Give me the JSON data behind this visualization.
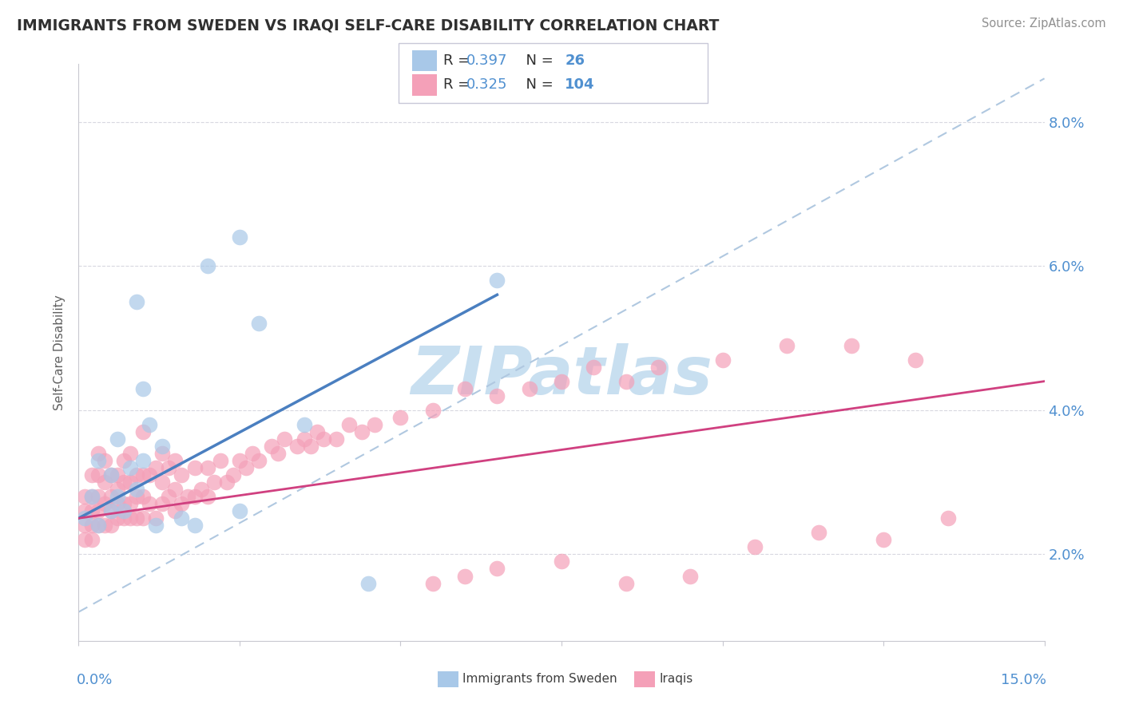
{
  "title": "IMMIGRANTS FROM SWEDEN VS IRAQI SELF-CARE DISABILITY CORRELATION CHART",
  "source": "Source: ZipAtlas.com",
  "ylabel": "Self-Care Disability",
  "xlim": [
    0.0,
    0.15
  ],
  "ylim": [
    0.008,
    0.088
  ],
  "yticks": [
    0.02,
    0.04,
    0.06,
    0.08
  ],
  "ytick_labels": [
    "2.0%",
    "4.0%",
    "6.0%",
    "8.0%"
  ],
  "sweden_R": 0.397,
  "sweden_N": 26,
  "iraq_R": 0.325,
  "iraq_N": 104,
  "sweden_dot_color": "#a8c8e8",
  "iraq_dot_color": "#f4a0b8",
  "sweden_line_color": "#4a7fc0",
  "iraq_line_color": "#d04080",
  "dash_color": "#b0c8e0",
  "axis_color": "#c8c8d0",
  "grid_color": "#d8d8e0",
  "right_tick_color": "#5090d0",
  "title_color": "#303030",
  "source_color": "#909090",
  "ylabel_color": "#606060",
  "watermark_color": "#c8dff0",
  "legend_border_color": "#c8c8d8",
  "sweden_line_x": [
    0.0,
    0.065
  ],
  "sweden_line_y": [
    0.025,
    0.056
  ],
  "iraq_line_x": [
    0.0,
    0.15
  ],
  "iraq_line_y": [
    0.025,
    0.044
  ],
  "dash_line_x": [
    0.0,
    0.15
  ],
  "dash_line_y": [
    0.012,
    0.086
  ],
  "sweden_x": [
    0.001,
    0.002,
    0.003,
    0.003,
    0.005,
    0.005,
    0.006,
    0.006,
    0.007,
    0.008,
    0.009,
    0.009,
    0.01,
    0.01,
    0.011,
    0.012,
    0.013,
    0.016,
    0.018,
    0.02,
    0.025,
    0.025,
    0.028,
    0.035,
    0.045,
    0.065
  ],
  "sweden_y": [
    0.025,
    0.028,
    0.024,
    0.033,
    0.026,
    0.031,
    0.028,
    0.036,
    0.026,
    0.032,
    0.029,
    0.055,
    0.033,
    0.043,
    0.038,
    0.024,
    0.035,
    0.025,
    0.024,
    0.06,
    0.026,
    0.064,
    0.052,
    0.038,
    0.016,
    0.058
  ],
  "iraq_x": [
    0.001,
    0.001,
    0.001,
    0.001,
    0.002,
    0.002,
    0.002,
    0.002,
    0.002,
    0.003,
    0.003,
    0.003,
    0.003,
    0.003,
    0.004,
    0.004,
    0.004,
    0.004,
    0.005,
    0.005,
    0.005,
    0.005,
    0.006,
    0.006,
    0.006,
    0.006,
    0.007,
    0.007,
    0.007,
    0.007,
    0.008,
    0.008,
    0.008,
    0.008,
    0.009,
    0.009,
    0.009,
    0.01,
    0.01,
    0.01,
    0.01,
    0.011,
    0.011,
    0.012,
    0.012,
    0.013,
    0.013,
    0.013,
    0.014,
    0.014,
    0.015,
    0.015,
    0.015,
    0.016,
    0.016,
    0.017,
    0.018,
    0.018,
    0.019,
    0.02,
    0.02,
    0.021,
    0.022,
    0.023,
    0.024,
    0.025,
    0.026,
    0.027,
    0.028,
    0.03,
    0.031,
    0.032,
    0.034,
    0.035,
    0.036,
    0.037,
    0.038,
    0.04,
    0.042,
    0.044,
    0.046,
    0.05,
    0.055,
    0.06,
    0.065,
    0.07,
    0.075,
    0.08,
    0.085,
    0.09,
    0.1,
    0.11,
    0.12,
    0.13,
    0.055,
    0.06,
    0.065,
    0.075,
    0.085,
    0.095,
    0.105,
    0.115,
    0.125,
    0.135
  ],
  "iraq_y": [
    0.024,
    0.026,
    0.028,
    0.022,
    0.024,
    0.026,
    0.028,
    0.022,
    0.031,
    0.024,
    0.026,
    0.028,
    0.031,
    0.034,
    0.024,
    0.027,
    0.03,
    0.033,
    0.024,
    0.026,
    0.028,
    0.031,
    0.025,
    0.027,
    0.029,
    0.031,
    0.025,
    0.027,
    0.03,
    0.033,
    0.025,
    0.027,
    0.03,
    0.034,
    0.025,
    0.028,
    0.031,
    0.025,
    0.028,
    0.031,
    0.037,
    0.027,
    0.031,
    0.025,
    0.032,
    0.027,
    0.03,
    0.034,
    0.028,
    0.032,
    0.026,
    0.029,
    0.033,
    0.027,
    0.031,
    0.028,
    0.028,
    0.032,
    0.029,
    0.028,
    0.032,
    0.03,
    0.033,
    0.03,
    0.031,
    0.033,
    0.032,
    0.034,
    0.033,
    0.035,
    0.034,
    0.036,
    0.035,
    0.036,
    0.035,
    0.037,
    0.036,
    0.036,
    0.038,
    0.037,
    0.038,
    0.039,
    0.04,
    0.043,
    0.042,
    0.043,
    0.044,
    0.046,
    0.044,
    0.046,
    0.047,
    0.049,
    0.049,
    0.047,
    0.016,
    0.017,
    0.018,
    0.019,
    0.016,
    0.017,
    0.021,
    0.023,
    0.022,
    0.025
  ]
}
